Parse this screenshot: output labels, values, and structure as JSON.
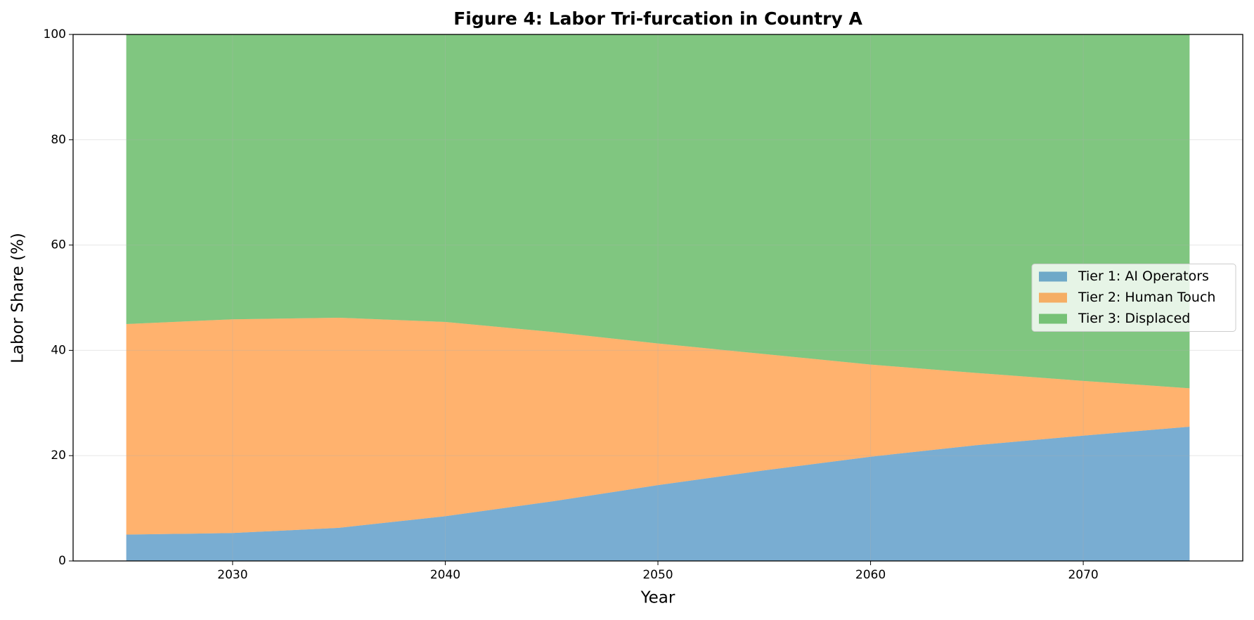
{
  "chart_data": {
    "type": "stacked_area",
    "title": "Figure 4: Labor Tri-furcation in Country A",
    "x_label": "Year",
    "y_label": "Labor Share (%)",
    "x": [
      2025,
      2030,
      2035,
      2040,
      2045,
      2050,
      2055,
      2060,
      2065,
      2070,
      2075
    ],
    "series": [
      {
        "name": "Tier 1: AI Operators",
        "color": "#1f77b4",
        "values": [
          5,
          5.3,
          6.3,
          8.5,
          11.3,
          14.4,
          17.2,
          19.8,
          22,
          23.8,
          25.5
        ]
      },
      {
        "name": "Tier 2: Human Touch",
        "color": "#ff7f0e",
        "values": [
          40,
          40.6,
          39.9,
          36.9,
          32.2,
          26.9,
          22.1,
          17.5,
          13.7,
          10.4,
          7.3
        ]
      },
      {
        "name": "Tier 3: Displaced",
        "color": "#2ca02c",
        "values": [
          55,
          54.1,
          53.8,
          54.6,
          56.5,
          58.7,
          60.7,
          62.7,
          64.3,
          65.8,
          67.2
        ]
      }
    ],
    "fill_opacity": 0.6,
    "xlim": [
      2022.5,
      2077.5
    ],
    "xticks": [
      2030,
      2040,
      2050,
      2060,
      2070
    ],
    "ylim": [
      0,
      100
    ],
    "yticks": [
      0,
      20,
      40,
      60,
      80,
      100
    ],
    "grid": true,
    "legend": "center right"
  }
}
